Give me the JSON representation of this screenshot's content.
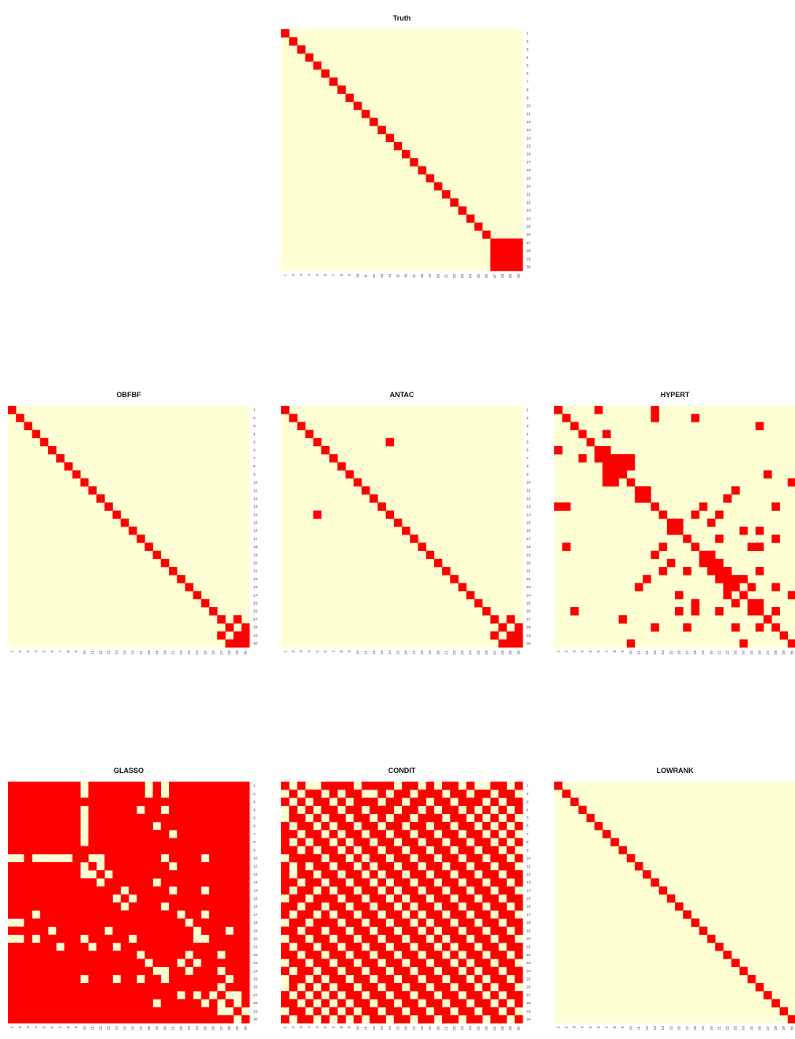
{
  "colors": {
    "edge": "#ff0000",
    "no_edge": "#ffffd4"
  },
  "tick_labels": [
    "1",
    "2",
    "3",
    "4",
    "5",
    "6",
    "7",
    "8",
    "9",
    "10",
    "11",
    "12",
    "13",
    "14",
    "15",
    "16",
    "17",
    "18",
    "19",
    "20",
    "21",
    "22",
    "23",
    "24",
    "25",
    "26",
    "27",
    "28",
    "29",
    "30"
  ],
  "chart_data": [
    {
      "type": "heatmap",
      "title": "Truth",
      "n": 30,
      "cells_rule": "diagonal plus one filled block",
      "diagonal": true,
      "blocks": [
        [
          27,
          30,
          27,
          30
        ]
      ],
      "edges": []
    },
    {
      "type": "heatmap",
      "title": "OBFBF",
      "n": 30,
      "diagonal": true,
      "blocks": [],
      "edges": [
        [
          27,
          29
        ],
        [
          28,
          30
        ],
        [
          29,
          30
        ]
      ]
    },
    {
      "type": "heatmap",
      "title": "ANTAC",
      "n": 30,
      "diagonal": true,
      "blocks": [],
      "edges": [
        [
          5,
          14
        ],
        [
          27,
          29
        ],
        [
          28,
          30
        ],
        [
          29,
          30
        ]
      ]
    },
    {
      "type": "heatmap",
      "title": "HYPERT",
      "n": 30,
      "diagonal": true,
      "blocks": [],
      "edges": [
        [
          1,
          6
        ],
        [
          1,
          13
        ],
        [
          2,
          13
        ],
        [
          2,
          18
        ],
        [
          3,
          26
        ],
        [
          4,
          7
        ],
        [
          6,
          7
        ],
        [
          7,
          8
        ],
        [
          7,
          9
        ],
        [
          7,
          10
        ],
        [
          8,
          9
        ],
        [
          8,
          10
        ],
        [
          9,
          27
        ],
        [
          10,
          30
        ],
        [
          11,
          12
        ],
        [
          11,
          23
        ],
        [
          12,
          22
        ],
        [
          13,
          19
        ],
        [
          13,
          28
        ],
        [
          14,
          18
        ],
        [
          14,
          21
        ],
        [
          15,
          16
        ],
        [
          15,
          20
        ],
        [
          16,
          24
        ],
        [
          16,
          26
        ],
        [
          17,
          21
        ],
        [
          17,
          28
        ],
        [
          18,
          25
        ],
        [
          18,
          26
        ],
        [
          19,
          20
        ],
        [
          20,
          21
        ],
        [
          21,
          22
        ],
        [
          21,
          26
        ],
        [
          22,
          23
        ],
        [
          22,
          24
        ],
        [
          23,
          25
        ],
        [
          23,
          28
        ],
        [
          24,
          30
        ],
        [
          25,
          26
        ],
        [
          26,
          28
        ]
      ]
    },
    {
      "type": "heatmap",
      "title": "GLASSO",
      "n": 30,
      "diagonal": true,
      "blocks": [],
      "fill_default": "edge",
      "no_edges": [
        [
          1,
          10
        ],
        [
          1,
          18
        ],
        [
          1,
          20
        ],
        [
          2,
          10
        ],
        [
          2,
          18
        ],
        [
          2,
          20
        ],
        [
          4,
          10
        ],
        [
          4,
          17
        ],
        [
          4,
          20
        ],
        [
          5,
          10
        ],
        [
          6,
          10
        ],
        [
          6,
          19
        ],
        [
          7,
          10
        ],
        [
          7,
          21
        ],
        [
          8,
          10
        ],
        [
          10,
          11
        ],
        [
          10,
          12
        ],
        [
          10,
          20
        ],
        [
          10,
          25
        ],
        [
          11,
          12
        ],
        [
          11,
          21
        ],
        [
          12,
          13
        ],
        [
          13,
          19
        ],
        [
          14,
          15
        ],
        [
          14,
          21
        ],
        [
          14,
          25
        ],
        [
          15,
          16
        ],
        [
          16,
          20
        ],
        [
          17,
          22
        ],
        [
          17,
          25
        ],
        [
          18,
          23
        ],
        [
          19,
          24
        ],
        [
          19,
          28
        ],
        [
          20,
          24
        ],
        [
          20,
          25
        ],
        [
          22,
          23
        ],
        [
          22,
          27
        ],
        [
          23,
          24
        ],
        [
          24,
          27
        ],
        [
          25,
          28
        ],
        [
          26,
          27
        ],
        [
          27,
          28
        ],
        [
          27,
          29
        ],
        [
          28,
          29
        ],
        [
          29,
          30
        ]
      ]
    },
    {
      "type": "heatmap",
      "title": "CONDIT",
      "n": 30,
      "diagonal": true,
      "blocks": [],
      "fill_default": "edge",
      "no_edges": [
        [
          1,
          2
        ],
        [
          1,
          4
        ],
        [
          1,
          5
        ],
        [
          1,
          10
        ],
        [
          1,
          15
        ],
        [
          1,
          18
        ],
        [
          1,
          20
        ],
        [
          1,
          23
        ],
        [
          1,
          25
        ],
        [
          1,
          26
        ],
        [
          1,
          29
        ],
        [
          2,
          3
        ],
        [
          2,
          6
        ],
        [
          2,
          8
        ],
        [
          2,
          11
        ],
        [
          2,
          12
        ],
        [
          2,
          14
        ],
        [
          2,
          17
        ],
        [
          2,
          21
        ],
        [
          2,
          24
        ],
        [
          2,
          27
        ],
        [
          2,
          30
        ],
        [
          3,
          4
        ],
        [
          3,
          7
        ],
        [
          3,
          9
        ],
        [
          3,
          13
        ],
        [
          3,
          16
        ],
        [
          3,
          19
        ],
        [
          3,
          22
        ],
        [
          3,
          26
        ],
        [
          3,
          28
        ],
        [
          4,
          5
        ],
        [
          4,
          8
        ],
        [
          4,
          11
        ],
        [
          4,
          15
        ],
        [
          4,
          18
        ],
        [
          4,
          20
        ],
        [
          4,
          23
        ],
        [
          4,
          25
        ],
        [
          4,
          27
        ],
        [
          4,
          29
        ],
        [
          5,
          6
        ],
        [
          5,
          9
        ],
        [
          5,
          12
        ],
        [
          5,
          14
        ],
        [
          5,
          17
        ],
        [
          5,
          21
        ],
        [
          5,
          24
        ],
        [
          5,
          26
        ],
        [
          5,
          28
        ],
        [
          5,
          30
        ],
        [
          6,
          7
        ],
        [
          6,
          10
        ],
        [
          6,
          13
        ],
        [
          6,
          16
        ],
        [
          6,
          19
        ],
        [
          6,
          22
        ],
        [
          6,
          25
        ],
        [
          6,
          27
        ],
        [
          6,
          29
        ],
        [
          7,
          8
        ],
        [
          7,
          11
        ],
        [
          7,
          14
        ],
        [
          7,
          17
        ],
        [
          7,
          20
        ],
        [
          7,
          23
        ],
        [
          7,
          26
        ],
        [
          7,
          28
        ],
        [
          7,
          30
        ],
        [
          8,
          9
        ],
        [
          8,
          12
        ],
        [
          8,
          15
        ],
        [
          8,
          18
        ],
        [
          8,
          21
        ],
        [
          8,
          24
        ],
        [
          8,
          27
        ],
        [
          8,
          29
        ],
        [
          9,
          10
        ],
        [
          9,
          13
        ],
        [
          9,
          16
        ],
        [
          9,
          19
        ],
        [
          9,
          22
        ],
        [
          9,
          25
        ],
        [
          9,
          28
        ],
        [
          9,
          30
        ],
        [
          10,
          11
        ],
        [
          10,
          14
        ],
        [
          10,
          17
        ],
        [
          10,
          20
        ],
        [
          10,
          23
        ],
        [
          10,
          26
        ],
        [
          10,
          29
        ],
        [
          11,
          12
        ],
        [
          11,
          15
        ],
        [
          11,
          18
        ],
        [
          11,
          21
        ],
        [
          11,
          24
        ],
        [
          11,
          27
        ],
        [
          11,
          30
        ],
        [
          12,
          13
        ],
        [
          12,
          16
        ],
        [
          12,
          19
        ],
        [
          12,
          22
        ],
        [
          12,
          25
        ],
        [
          12,
          28
        ],
        [
          13,
          14
        ],
        [
          13,
          17
        ],
        [
          13,
          20
        ],
        [
          13,
          23
        ],
        [
          13,
          26
        ],
        [
          13,
          29
        ],
        [
          14,
          15
        ],
        [
          14,
          18
        ],
        [
          14,
          21
        ],
        [
          14,
          24
        ],
        [
          14,
          27
        ],
        [
          14,
          30
        ],
        [
          15,
          16
        ],
        [
          15,
          19
        ],
        [
          15,
          22
        ],
        [
          15,
          25
        ],
        [
          15,
          28
        ],
        [
          16,
          17
        ],
        [
          16,
          20
        ],
        [
          16,
          23
        ],
        [
          16,
          26
        ],
        [
          16,
          29
        ],
        [
          17,
          18
        ],
        [
          17,
          21
        ],
        [
          17,
          24
        ],
        [
          17,
          27
        ],
        [
          17,
          30
        ],
        [
          18,
          19
        ],
        [
          18,
          22
        ],
        [
          18,
          25
        ],
        [
          18,
          28
        ],
        [
          19,
          20
        ],
        [
          19,
          23
        ],
        [
          19,
          26
        ],
        [
          19,
          29
        ],
        [
          20,
          21
        ],
        [
          20,
          24
        ],
        [
          20,
          27
        ],
        [
          20,
          30
        ],
        [
          21,
          22
        ],
        [
          21,
          25
        ],
        [
          21,
          28
        ],
        [
          22,
          23
        ],
        [
          22,
          26
        ],
        [
          22,
          29
        ],
        [
          23,
          24
        ],
        [
          23,
          27
        ],
        [
          23,
          30
        ],
        [
          24,
          25
        ],
        [
          24,
          28
        ],
        [
          25,
          26
        ],
        [
          25,
          29
        ],
        [
          26,
          27
        ],
        [
          26,
          30
        ],
        [
          27,
          28
        ],
        [
          28,
          29
        ],
        [
          29,
          30
        ]
      ]
    },
    {
      "type": "heatmap",
      "title": "LOWRANK",
      "n": 30,
      "diagonal": true,
      "blocks": [],
      "edges": []
    }
  ]
}
